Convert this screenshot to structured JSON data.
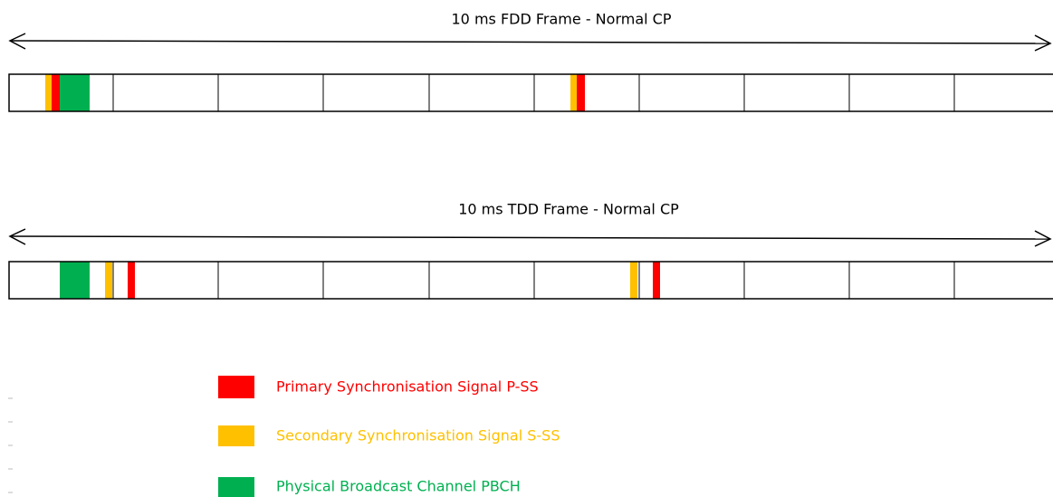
{
  "fdd": {
    "title": "10 ms FDD Frame - Normal CP"
  },
  "tdd": {
    "title": "10 ms TDD Frame - Normal CP"
  },
  "legend": [
    {
      "label": "Primary Synchronisation Signal P-SS"
    },
    {
      "label": "Secondary Synchronisation Signal S-SS"
    },
    {
      "label": "Physical Broadcast Channel PBCH"
    }
  ]
}
